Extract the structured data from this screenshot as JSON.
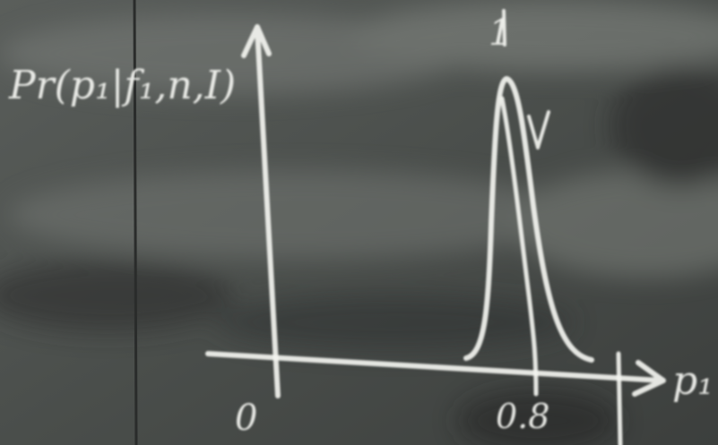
{
  "board": {
    "y_label": "Pr(p₁|f₁,n,I)",
    "x_label": "p₁",
    "peak_label": "1",
    "x_ticks": [
      "0",
      "0.8"
    ]
  }
}
